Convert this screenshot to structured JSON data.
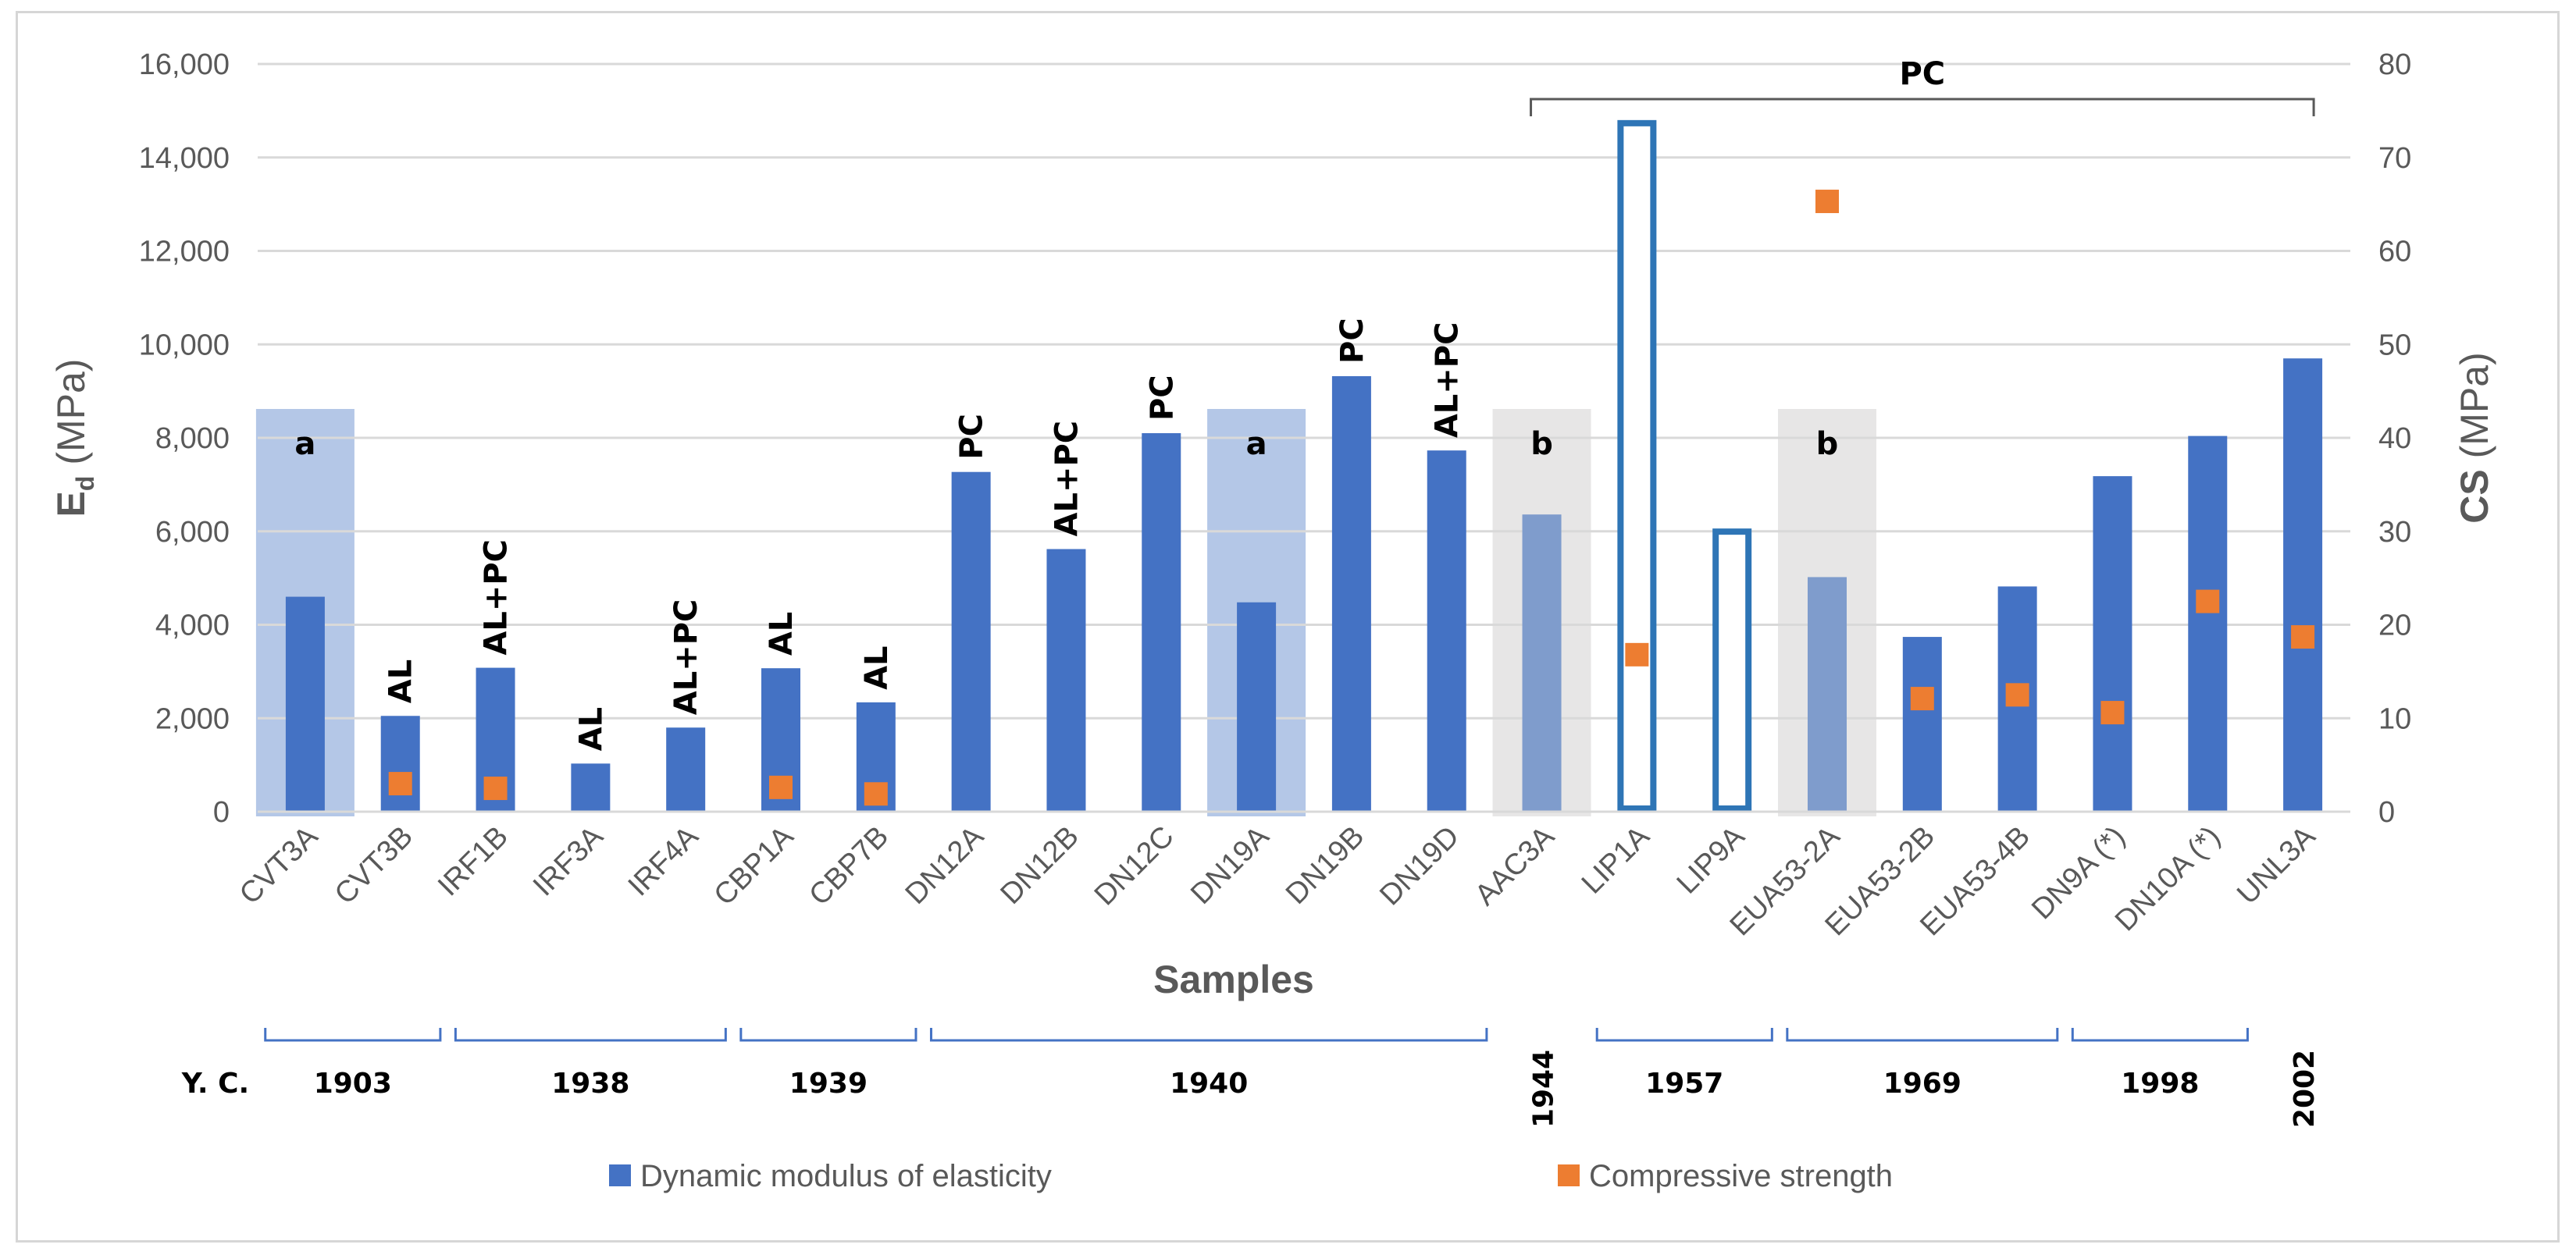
{
  "chart_data": {
    "type": "bar",
    "title": "",
    "xlabel": "Samples",
    "ylabel": {
      "main": "E",
      "sub": "d",
      "unit": " (MPa)"
    },
    "y2label": "CS (MPa)",
    "ylim": [
      0,
      16000
    ],
    "y2lim": [
      0,
      80
    ],
    "yticks": [
      "0",
      "2,000",
      "4,000",
      "6,000",
      "8,000",
      "10,000",
      "12,000",
      "14,000",
      "16,000"
    ],
    "y2ticks": [
      "0",
      "10",
      "20",
      "30",
      "40",
      "50",
      "60",
      "70",
      "80"
    ],
    "categories": [
      "CVT3A",
      "CVT3B",
      "IRF1B",
      "IRF3A",
      "IRF4A",
      "CBP1A",
      "CBP7B",
      "DN12A",
      "DN12B",
      "DN12C",
      "DN19A",
      "DN19B",
      "DN19D",
      "AAC3A",
      "LIP1A",
      "LIP9A",
      "EUA53-2A",
      "EUA53-2B",
      "EUA53-4B",
      "DN9A (*)",
      "DN10A (*)",
      "UNL3A"
    ],
    "series": [
      {
        "name": "Dynamic modulus of elasticity",
        "axis": "left",
        "color": "#4472c4",
        "values": [
          4600,
          2050,
          3080,
          1030,
          1800,
          3070,
          2340,
          7270,
          5620,
          8100,
          4480,
          9320,
          7730,
          6360,
          14800,
          6060,
          5020,
          3740,
          4820,
          7180,
          8040,
          9700
        ],
        "styles": [
          "solid",
          "solid",
          "solid",
          "solid",
          "solid",
          "solid",
          "solid",
          "solid",
          "solid",
          "solid",
          "solid",
          "solid",
          "solid",
          "solid",
          "outline",
          "outline",
          "solid",
          "solid",
          "solid",
          "solid",
          "solid",
          "solid"
        ]
      },
      {
        "name": "Compressive strength",
        "axis": "right",
        "color": "#ed7d31",
        "values": [
          null,
          3.0,
          2.5,
          null,
          null,
          2.6,
          1.9,
          null,
          null,
          null,
          null,
          null,
          null,
          null,
          16.8,
          null,
          65.3,
          12.1,
          12.5,
          10.6,
          22.5,
          18.7
        ]
      }
    ],
    "annotations": [
      {
        "index": 1,
        "text": "AL"
      },
      {
        "index": 2,
        "text": "AL+PC"
      },
      {
        "index": 3,
        "text": "AL"
      },
      {
        "index": 4,
        "text": "AL+PC"
      },
      {
        "index": 5,
        "text": "AL"
      },
      {
        "index": 6,
        "text": "AL"
      },
      {
        "index": 7,
        "text": "PC"
      },
      {
        "index": 8,
        "text": "AL+PC"
      },
      {
        "index": 9,
        "text": "PC"
      },
      {
        "index": 11,
        "text": "PC"
      },
      {
        "index": 12,
        "text": "AL+PC"
      }
    ],
    "groups": [
      {
        "index": 0,
        "label": "a",
        "color": "#b4c7e7"
      },
      {
        "index": 10,
        "label": "a",
        "color": "#b4c7e7"
      },
      {
        "index": 13,
        "label": "b",
        "color": "#e7e6e6"
      },
      {
        "index": 16,
        "label": "b",
        "color": "#e7e6e6"
      }
    ],
    "bracket": {
      "from": 13,
      "to": 21,
      "label": "PC"
    },
    "year_row_label": "Y. C.",
    "years": [
      {
        "label": "1903",
        "from": 0,
        "to": 1
      },
      {
        "label": "1938",
        "from": 2,
        "to": 4
      },
      {
        "label": "1939",
        "from": 5,
        "to": 6
      },
      {
        "label": "1940",
        "from": 7,
        "to": 12
      },
      {
        "label": "1944",
        "from": 13,
        "to": 13
      },
      {
        "label": "1957",
        "from": 14,
        "to": 15
      },
      {
        "label": "1969",
        "from": 16,
        "to": 18
      },
      {
        "label": "1998",
        "from": 19,
        "to": 20
      },
      {
        "label": "2002",
        "from": 21,
        "to": 21
      }
    ],
    "legend": [
      {
        "label": "Dynamic modulus of elasticity",
        "color": "#4472c4"
      },
      {
        "label": "Compressive strength",
        "color": "#ed7d31"
      }
    ],
    "grid": true
  }
}
